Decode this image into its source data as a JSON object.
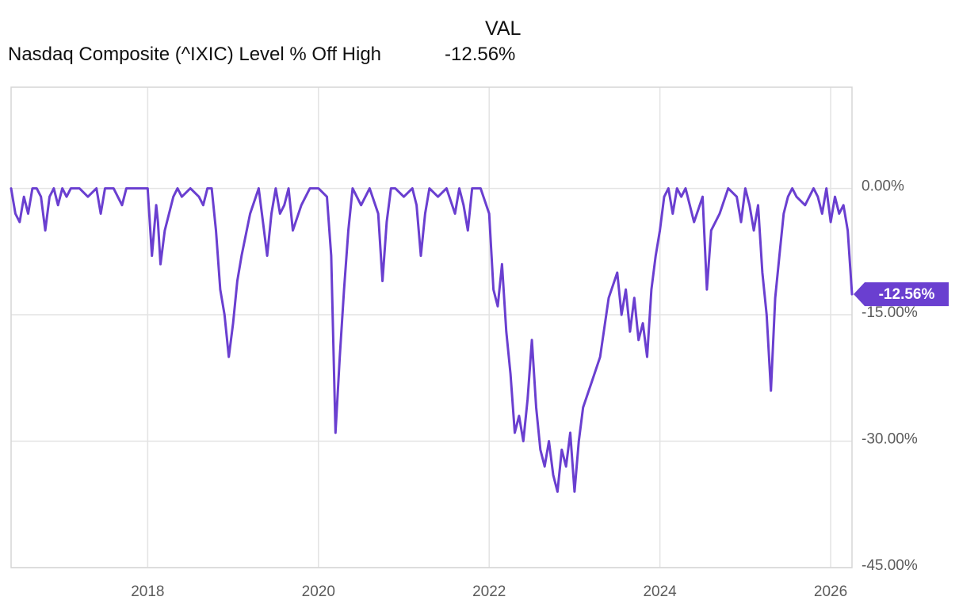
{
  "legend": {
    "column_header": "VAL",
    "series_name": "Nasdaq Composite (^IXIC) Level % Off High",
    "series_value": "-12.56%"
  },
  "chart_data": {
    "type": "line",
    "title": "",
    "xlabel": "",
    "ylabel": "",
    "xlim": [
      2016.4,
      2026.25
    ],
    "ylim": [
      -45,
      12
    ],
    "x_ticks": [
      2018,
      2020,
      2022,
      2024,
      2026
    ],
    "x_tick_labels": [
      "2018",
      "2020",
      "2022",
      "2024",
      "2026"
    ],
    "y_ticks": [
      0,
      -15,
      -30,
      -45
    ],
    "y_tick_labels": [
      "0.00%",
      "-15.00%",
      "-30.00%",
      "-45.00%"
    ],
    "grid": true,
    "line_color": "#6a3fd0",
    "last_value_label": "-12.56%",
    "series": [
      {
        "name": "Nasdaq Composite (^IXIC) Level % Off High",
        "x": [
          2016.4,
          2016.45,
          2016.5,
          2016.55,
          2016.6,
          2016.65,
          2016.7,
          2016.75,
          2016.8,
          2016.85,
          2016.9,
          2016.95,
          2017.0,
          2017.05,
          2017.1,
          2017.2,
          2017.3,
          2017.4,
          2017.45,
          2017.5,
          2017.6,
          2017.7,
          2017.75,
          2017.8,
          2017.9,
          2018.0,
          2018.05,
          2018.1,
          2018.12,
          2018.15,
          2018.2,
          2018.25,
          2018.3,
          2018.35,
          2018.4,
          2018.5,
          2018.6,
          2018.65,
          2018.7,
          2018.75,
          2018.8,
          2018.85,
          2018.9,
          2018.95,
          2019.0,
          2019.05,
          2019.1,
          2019.2,
          2019.3,
          2019.35,
          2019.4,
          2019.45,
          2019.5,
          2019.55,
          2019.6,
          2019.65,
          2019.7,
          2019.8,
          2019.9,
          2020.0,
          2020.1,
          2020.15,
          2020.2,
          2020.25,
          2020.3,
          2020.35,
          2020.4,
          2020.5,
          2020.6,
          2020.7,
          2020.75,
          2020.8,
          2020.85,
          2020.9,
          2021.0,
          2021.1,
          2021.15,
          2021.2,
          2021.25,
          2021.3,
          2021.4,
          2021.5,
          2021.6,
          2021.65,
          2021.7,
          2021.75,
          2021.8,
          2021.9,
          2022.0,
          2022.05,
          2022.1,
          2022.15,
          2022.2,
          2022.25,
          2022.3,
          2022.35,
          2022.4,
          2022.45,
          2022.5,
          2022.55,
          2022.6,
          2022.65,
          2022.7,
          2022.75,
          2022.8,
          2022.85,
          2022.9,
          2022.95,
          2023.0,
          2023.05,
          2023.1,
          2023.2,
          2023.3,
          2023.4,
          2023.5,
          2023.55,
          2023.6,
          2023.65,
          2023.7,
          2023.75,
          2023.8,
          2023.85,
          2023.9,
          2023.95,
          2024.0,
          2024.05,
          2024.1,
          2024.15,
          2024.2,
          2024.25,
          2024.3,
          2024.4,
          2024.5,
          2024.55,
          2024.6,
          2024.7,
          2024.8,
          2024.9,
          2024.95,
          2025.0,
          2025.05,
          2025.1,
          2025.15,
          2025.2,
          2025.25,
          2025.3,
          2025.35,
          2025.4,
          2025.45,
          2025.5,
          2025.55,
          2025.6,
          2025.7,
          2025.8,
          2025.85,
          2025.9,
          2025.95,
          2026.0,
          2026.05,
          2026.1,
          2026.15,
          2026.2,
          2026.25
        ],
        "values": [
          0,
          -3,
          -4,
          -1,
          -3,
          0,
          0,
          -1,
          -5,
          -1,
          0,
          -2,
          0,
          -1,
          0,
          0,
          -1,
          0,
          -3,
          0,
          0,
          -2,
          0,
          0,
          0,
          0,
          -8,
          -2,
          -4,
          -9,
          -5,
          -3,
          -1,
          0,
          -1,
          0,
          -1,
          -2,
          0,
          0,
          -5,
          -12,
          -15,
          -20,
          -16,
          -11,
          -8,
          -3,
          0,
          -4,
          -8,
          -3,
          0,
          -3,
          -2,
          0,
          -5,
          -2,
          0,
          0,
          -1,
          -8,
          -29,
          -20,
          -12,
          -5,
          0,
          -2,
          0,
          -3,
          -11,
          -4,
          0,
          0,
          -1,
          0,
          -2,
          -8,
          -3,
          0,
          -1,
          0,
          -3,
          0,
          -2,
          -5,
          0,
          0,
          -3,
          -12,
          -14,
          -9,
          -17,
          -22,
          -29,
          -27,
          -30,
          -25,
          -18,
          -26,
          -31,
          -33,
          -30,
          -34,
          -36,
          -31,
          -33,
          -29,
          -36,
          -30,
          -26,
          -23,
          -20,
          -13,
          -10,
          -15,
          -12,
          -17,
          -13,
          -18,
          -16,
          -20,
          -12,
          -8,
          -5,
          -1,
          0,
          -3,
          0,
          -1,
          0,
          -4,
          -1,
          -12,
          -5,
          -3,
          0,
          -1,
          -4,
          0,
          -2,
          -5,
          -2,
          -10,
          -15,
          -24,
          -13,
          -8,
          -3,
          -1,
          0,
          -1,
          -2,
          0,
          -1,
          -3,
          0,
          -4,
          -1,
          -3,
          -2,
          -5,
          -12.56
        ]
      }
    ]
  }
}
